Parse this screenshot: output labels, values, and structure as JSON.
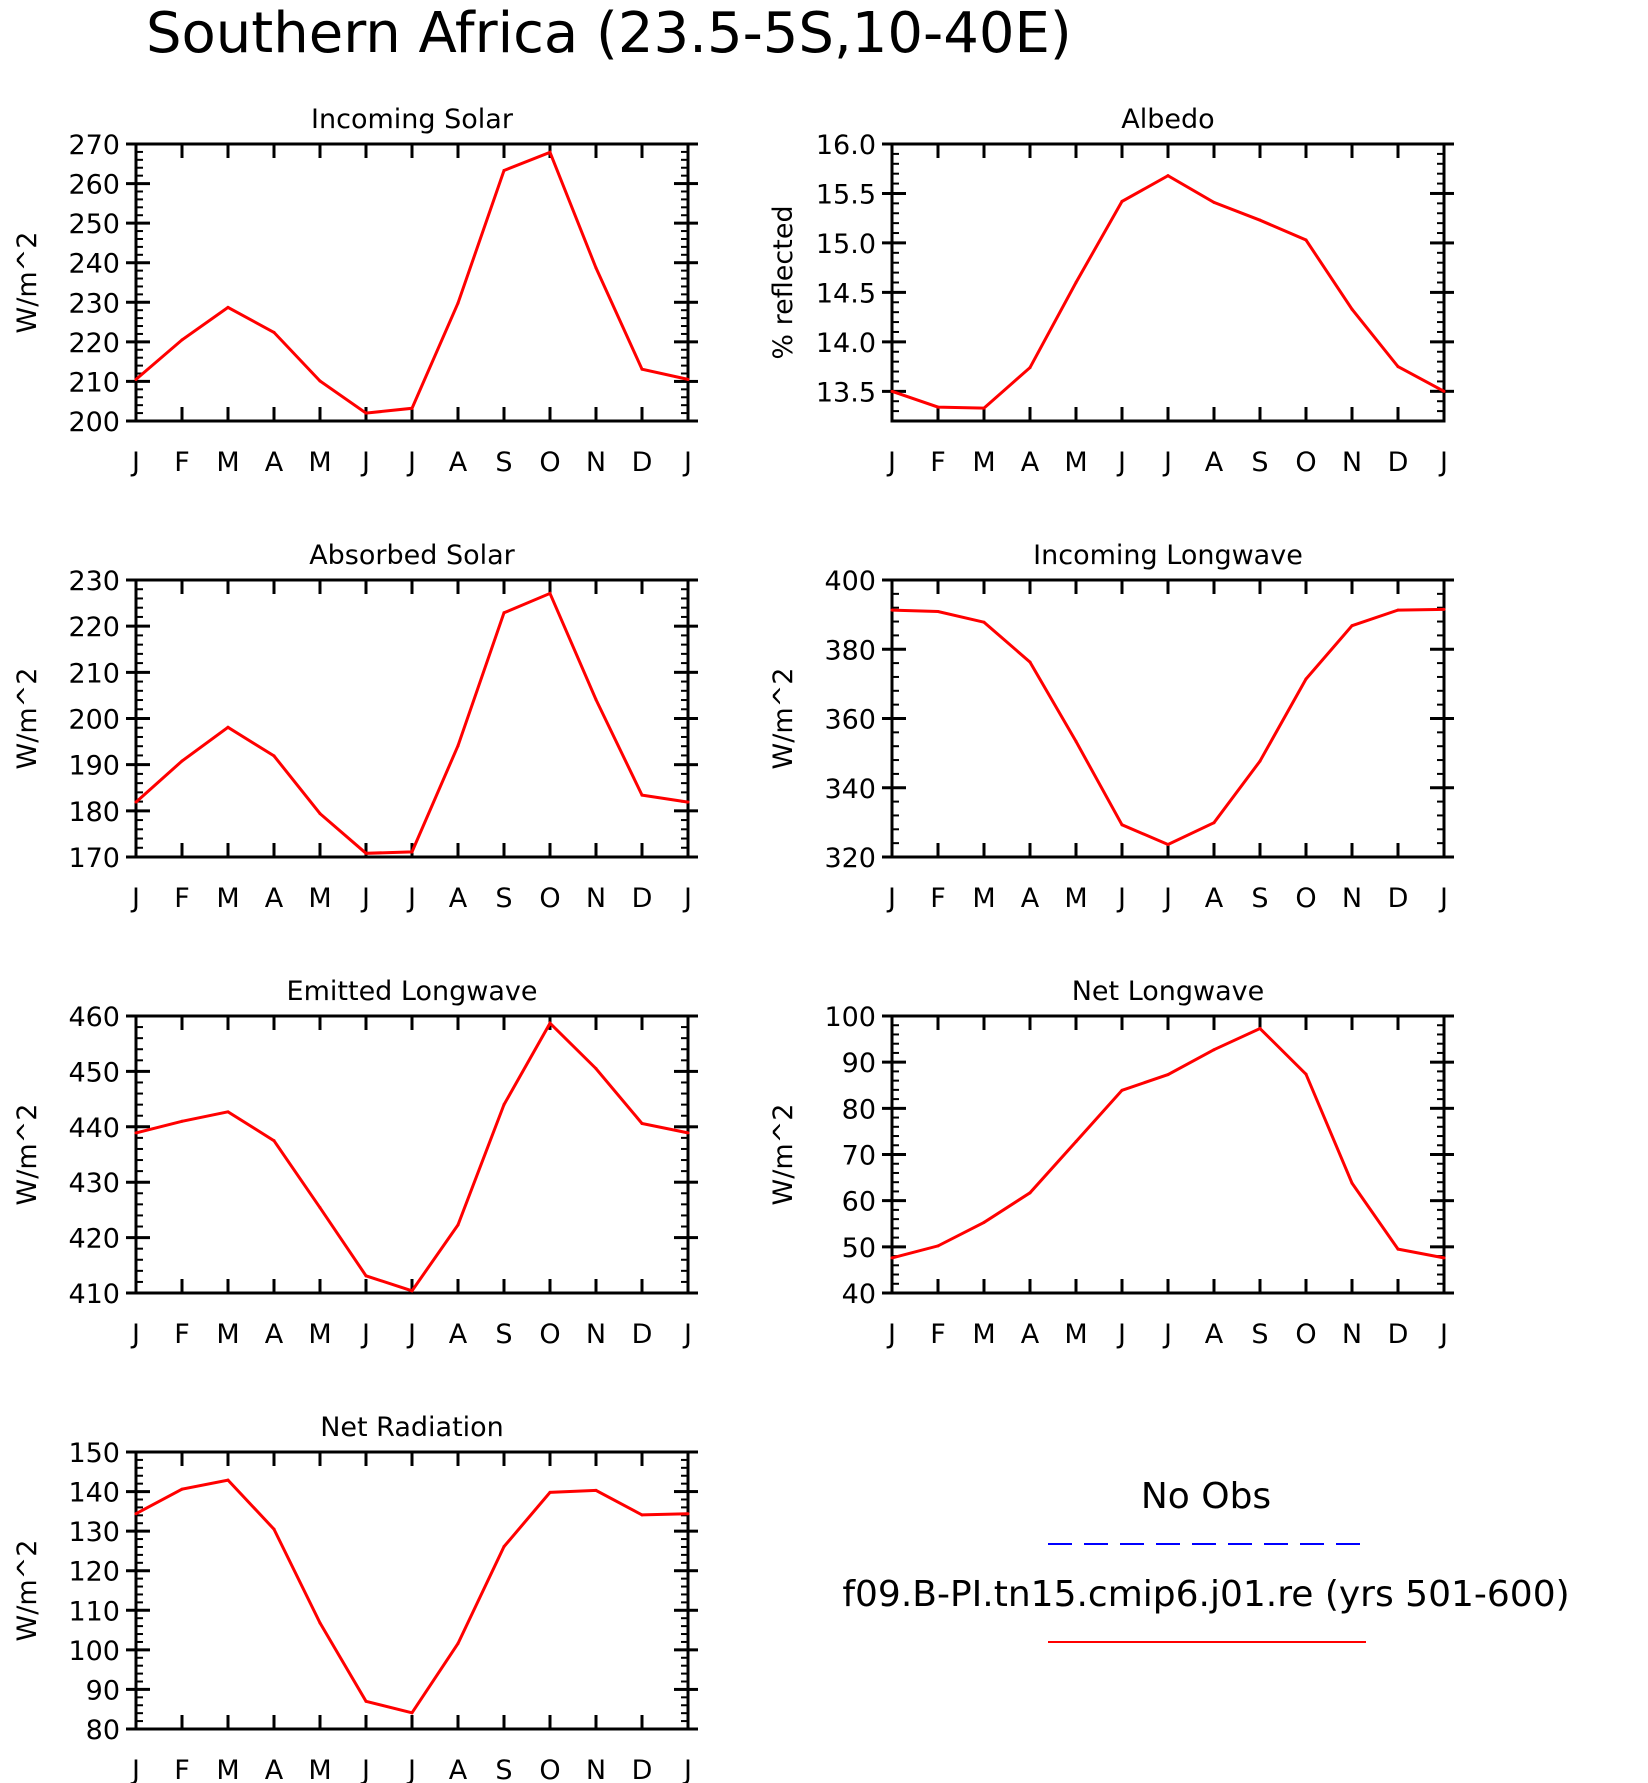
{
  "title": "Southern Africa (23.5-5S,10-40E)",
  "colors": {
    "model": "#ff0000",
    "obs": "#0000ff",
    "axis": "#000000"
  },
  "legend": {
    "obs_label": "No Obs",
    "model_label": "f09.B-PI.tn15.cmip6.j01.re (yrs 501-600)"
  },
  "chart_data": [
    {
      "type": "line",
      "title": "Incoming Solar",
      "ylabel": "W/m^2",
      "categories": [
        "J",
        "F",
        "M",
        "A",
        "M",
        "J",
        "J",
        "A",
        "S",
        "O",
        "N",
        "D",
        "J"
      ],
      "ylim": [
        200,
        270
      ],
      "yticks": [
        200,
        210,
        220,
        230,
        240,
        250,
        260,
        270
      ],
      "ytick_labels": [
        "200",
        "210",
        "220",
        "230",
        "240",
        "250",
        "260",
        "270"
      ],
      "series": [
        {
          "values": [
            210.5,
            220.5,
            228.7,
            222.4,
            210.1,
            202.0,
            203.2,
            229.8,
            263.3,
            267.9,
            238.7,
            213.1,
            210.5
          ]
        }
      ]
    },
    {
      "type": "line",
      "title": "Albedo",
      "ylabel": "% reflected",
      "categories": [
        "J",
        "F",
        "M",
        "A",
        "M",
        "J",
        "J",
        "A",
        "S",
        "O",
        "N",
        "D",
        "J"
      ],
      "ylim": [
        13.2,
        16.0
      ],
      "yticks": [
        13.5,
        14.0,
        14.5,
        15.0,
        15.5,
        16.0
      ],
      "ytick_labels": [
        "13.5",
        "14.0",
        "14.5",
        "15.0",
        "15.5",
        "16.0"
      ],
      "series": [
        {
          "values": [
            13.5,
            13.34,
            13.33,
            13.74,
            14.6,
            15.42,
            15.68,
            15.41,
            15.23,
            15.03,
            14.33,
            13.75,
            13.5
          ]
        }
      ]
    },
    {
      "type": "line",
      "title": "Absorbed Solar",
      "ylabel": "W/m^2",
      "categories": [
        "J",
        "F",
        "M",
        "A",
        "M",
        "J",
        "J",
        "A",
        "S",
        "O",
        "N",
        "D",
        "J"
      ],
      "ylim": [
        170,
        230
      ],
      "yticks": [
        170,
        180,
        190,
        200,
        210,
        220,
        230
      ],
      "ytick_labels": [
        "170",
        "180",
        "190",
        "200",
        "210",
        "220",
        "230"
      ],
      "series": [
        {
          "values": [
            181.9,
            190.8,
            198.1,
            191.9,
            179.4,
            170.8,
            171.1,
            194.1,
            222.9,
            227.1,
            204.1,
            183.4,
            181.9
          ]
        }
      ]
    },
    {
      "type": "line",
      "title": "Incoming Longwave",
      "ylabel": "W/m^2",
      "categories": [
        "J",
        "F",
        "M",
        "A",
        "M",
        "J",
        "J",
        "A",
        "S",
        "O",
        "N",
        "D",
        "J"
      ],
      "ylim": [
        320,
        400
      ],
      "yticks": [
        320,
        340,
        360,
        380,
        400
      ],
      "ytick_labels": [
        "320",
        "340",
        "360",
        "380",
        "400"
      ],
      "series": [
        {
          "values": [
            391.3,
            390.9,
            387.8,
            376.3,
            353.4,
            329.3,
            323.6,
            329.9,
            347.7,
            371.4,
            386.8,
            391.3,
            391.5
          ]
        }
      ]
    },
    {
      "type": "line",
      "title": "Emitted Longwave",
      "ylabel": "W/m^2",
      "categories": [
        "J",
        "F",
        "M",
        "A",
        "M",
        "J",
        "J",
        "A",
        "S",
        "O",
        "N",
        "D",
        "J"
      ],
      "ylim": [
        410,
        460
      ],
      "yticks": [
        410,
        420,
        430,
        440,
        450,
        460
      ],
      "ytick_labels": [
        "410",
        "420",
        "430",
        "440",
        "450",
        "460"
      ],
      "series": [
        {
          "values": [
            438.9,
            441.0,
            442.7,
            437.5,
            425.4,
            413.1,
            410.4,
            422.3,
            444.0,
            458.7,
            450.5,
            440.6,
            438.9
          ]
        }
      ]
    },
    {
      "type": "line",
      "title": "Net Longwave",
      "ylabel": "W/m^2",
      "categories": [
        "J",
        "F",
        "M",
        "A",
        "M",
        "J",
        "J",
        "A",
        "S",
        "O",
        "N",
        "D",
        "J"
      ],
      "ylim": [
        40,
        100
      ],
      "yticks": [
        40,
        50,
        60,
        70,
        80,
        90,
        100
      ],
      "ytick_labels": [
        "40",
        "50",
        "60",
        "70",
        "80",
        "90",
        "100"
      ],
      "series": [
        {
          "values": [
            47.6,
            50.2,
            55.3,
            61.7,
            72.8,
            83.9,
            87.3,
            92.7,
            97.3,
            87.4,
            63.8,
            49.5,
            47.6
          ]
        }
      ]
    },
    {
      "type": "line",
      "title": "Net Radiation",
      "ylabel": "W/m^2",
      "categories": [
        "J",
        "F",
        "M",
        "A",
        "M",
        "J",
        "J",
        "A",
        "S",
        "O",
        "N",
        "D",
        "J"
      ],
      "ylim": [
        80,
        150
      ],
      "yticks": [
        80,
        90,
        100,
        110,
        120,
        130,
        140,
        150
      ],
      "ytick_labels": [
        "80",
        "90",
        "100",
        "110",
        "120",
        "130",
        "140",
        "150"
      ],
      "series": [
        {
          "values": [
            134.4,
            140.6,
            142.9,
            130.5,
            106.8,
            87.0,
            84.1,
            101.6,
            126.1,
            139.8,
            140.3,
            134.1,
            134.4
          ]
        }
      ]
    }
  ]
}
